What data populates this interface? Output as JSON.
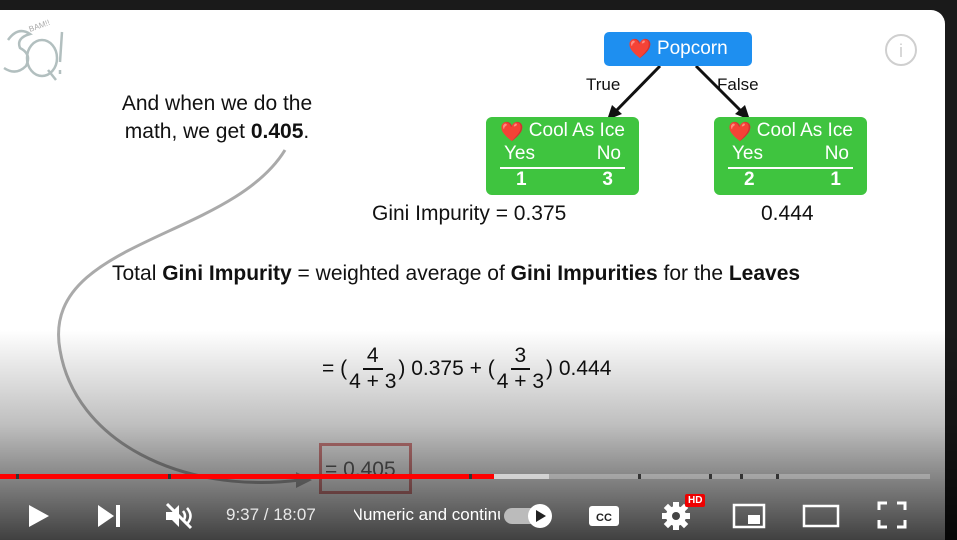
{
  "slide": {
    "note_line1": "And when we do the",
    "note_line2_prefix": "math, we get ",
    "note_value": "0.405",
    "note_suffix": ".",
    "root_label": "Popcorn",
    "edge_true": "True",
    "edge_false": "False",
    "left_leaf": {
      "label": "Cool As Ice",
      "yes": "Yes",
      "no": "No",
      "yes_count": "1",
      "no_count": "3"
    },
    "right_leaf": {
      "label": "Cool As Ice",
      "yes": "Yes",
      "no": "No",
      "yes_count": "2",
      "no_count": "1"
    },
    "left_gini": "Gini Impurity = 0.375",
    "right_gini": "0.444",
    "total_a": "Total ",
    "total_b": "Gini Impurity",
    "total_c": " = weighted average of ",
    "total_d": "Gini Impurities",
    "total_e": " for the ",
    "total_f": "Leaves",
    "eq_open": "= (",
    "frac1_num": "4",
    "frac1_den": "4 + 3",
    "eq_mid": ") 0.375 + (",
    "frac2_num": "3",
    "frac2_den": "4 + 3",
    "eq_close": ") 0.444",
    "result_box": "= 0.405"
  },
  "player": {
    "time": "9:37 / 18:07",
    "chapter": "• Numeric and continuous variables",
    "progress_fraction": 0.531,
    "buffer_fraction": 0.59,
    "hd_badge": "HD",
    "cc_label": "CC",
    "info_label": "i",
    "colors": {
      "accent": "#ff0000",
      "node_green": "#3fc43f",
      "root_blue": "#1e8ff0"
    },
    "icons": [
      "play-icon",
      "next-icon",
      "muted-icon",
      "autoplay-toggle-icon",
      "cc-icon",
      "settings-icon",
      "miniplayer-icon",
      "theater-icon",
      "fullscreen-icon",
      "info-icon"
    ]
  }
}
